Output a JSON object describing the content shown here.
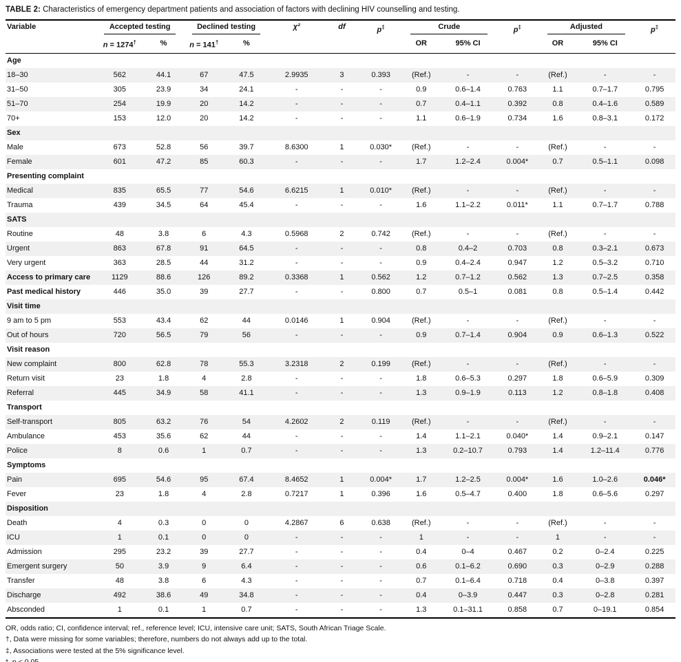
{
  "title": {
    "label": "TABLE 2:",
    "text": "Characteristics of emergency department patients and association of factors with declining HIV counselling and testing."
  },
  "table": {
    "headers": {
      "variable": "Variable",
      "accepted": "Accepted testing",
      "declined": "Declined testing",
      "chi2": "χ²",
      "df": "df",
      "p": {
        "p": "p",
        "sup": "‡"
      },
      "crude": "Crude",
      "adjusted": "Adjusted",
      "n1": {
        "n": "n",
        "rest": " = 1274",
        "sup": "†"
      },
      "n2": {
        "n": "n",
        "rest": " = 141",
        "sup": "†"
      },
      "pct": "%",
      "or": "OR",
      "ci": "95% CI"
    },
    "rows": [
      {
        "type": "section",
        "label": "Age"
      },
      {
        "type": "data",
        "label": "18–30",
        "cells": [
          "562",
          "44.1",
          "67",
          "47.5",
          "2.9935",
          "3",
          "0.393",
          "(Ref.)",
          "-",
          "-",
          "(Ref.)",
          "-",
          "-"
        ]
      },
      {
        "type": "data",
        "label": "31–50",
        "cells": [
          "305",
          "23.9",
          "34",
          "24.1",
          "-",
          "-",
          "-",
          "0.9",
          "0.6–1.4",
          "0.763",
          "1.1",
          "0.7–1.7",
          "0.795"
        ]
      },
      {
        "type": "data",
        "label": "51–70",
        "cells": [
          "254",
          "19.9",
          "20",
          "14.2",
          "-",
          "-",
          "-",
          "0.7",
          "0.4–1.1",
          "0.392",
          "0.8",
          "0.4–1.6",
          "0.589"
        ]
      },
      {
        "type": "data",
        "label": "70+",
        "cells": [
          "153",
          "12.0",
          "20",
          "14.2",
          "-",
          "-",
          "-",
          "1.1",
          "0.6–1.9",
          "0.734",
          "1.6",
          "0.8–3.1",
          "0.172"
        ]
      },
      {
        "type": "section",
        "label": "Sex"
      },
      {
        "type": "data",
        "label": "Male",
        "cells": [
          "673",
          "52.8",
          "56",
          "39.7",
          "8.6300",
          "1",
          "0.030*",
          "(Ref.)",
          "-",
          "-",
          "(Ref.)",
          "-",
          "-"
        ]
      },
      {
        "type": "data",
        "label": "Female",
        "cells": [
          "601",
          "47.2",
          "85",
          "60.3",
          "-",
          "-",
          "-",
          "1.7",
          "1.2–2.4",
          "0.004*",
          "0.7",
          "0.5–1.1",
          "0.098"
        ]
      },
      {
        "type": "section",
        "label": "Presenting complaint"
      },
      {
        "type": "data",
        "label": "Medical",
        "cells": [
          "835",
          "65.5",
          "77",
          "54.6",
          "6.6215",
          "1",
          "0.010*",
          "(Ref.)",
          "-",
          "-",
          "(Ref.)",
          "-",
          "-"
        ]
      },
      {
        "type": "data",
        "label": "Trauma",
        "cells": [
          "439",
          "34.5",
          "64",
          "45.4",
          "-",
          "-",
          "-",
          "1.6",
          "1.1–2.2",
          "0.011*",
          "1.1",
          "0.7–1.7",
          "0.788"
        ]
      },
      {
        "type": "section",
        "label": "SATS"
      },
      {
        "type": "data",
        "label": "Routine",
        "cells": [
          "48",
          "3.8",
          "6",
          "4.3",
          "0.5968",
          "2",
          "0.742",
          "(Ref.)",
          "-",
          "-",
          "(Ref.)",
          "-",
          "-"
        ]
      },
      {
        "type": "data",
        "label": "Urgent",
        "cells": [
          "863",
          "67.8",
          "91",
          "64.5",
          "-",
          "-",
          "-",
          "0.8",
          "0.4–2",
          "0.703",
          "0.8",
          "0.3–2.1",
          "0.673"
        ]
      },
      {
        "type": "data",
        "label": "Very urgent",
        "cells": [
          "363",
          "28.5",
          "44",
          "31.2",
          "-",
          "-",
          "-",
          "0.9",
          "0.4–2.4",
          "0.947",
          "1.2",
          "0.5–3.2",
          "0.710"
        ]
      },
      {
        "type": "bold",
        "label": "Access to primary care",
        "cells": [
          "1129",
          "88.6",
          "126",
          "89.2",
          "0.3368",
          "1",
          "0.562",
          "1.2",
          "0.7–1.2",
          "0.562",
          "1.3",
          "0.7–2.5",
          "0.358"
        ]
      },
      {
        "type": "bold",
        "label": "Past medical history",
        "cells": [
          "446",
          "35.0",
          "39",
          "27.7",
          "-",
          "-",
          "0.800",
          "0.7",
          "0.5–1",
          "0.081",
          "0.8",
          "0.5–1.4",
          "0.442"
        ]
      },
      {
        "type": "section",
        "label": "Visit time"
      },
      {
        "type": "data",
        "label": "9 am to 5 pm",
        "cells": [
          "553",
          "43.4",
          "62",
          "44",
          "0.0146",
          "1",
          "0.904",
          "(Ref.)",
          "-",
          "-",
          "(Ref.)",
          "-",
          "-"
        ]
      },
      {
        "type": "data",
        "label": "Out of hours",
        "cells": [
          "720",
          "56.5",
          "79",
          "56",
          "-",
          "-",
          "-",
          "0.9",
          "0.7–1.4",
          "0.904",
          "0.9",
          "0.6–1.3",
          "0.522"
        ]
      },
      {
        "type": "section",
        "label": "Visit reason"
      },
      {
        "type": "data",
        "label": "New complaint",
        "cells": [
          "800",
          "62.8",
          "78",
          "55.3",
          "3.2318",
          "2",
          "0.199",
          "(Ref.)",
          "-",
          "-",
          "(Ref.)",
          "-",
          "-"
        ]
      },
      {
        "type": "data",
        "label": "Return visit",
        "cells": [
          "23",
          "1.8",
          "4",
          "2.8",
          "-",
          "-",
          "-",
          "1.8",
          "0.6–5.3",
          "0.297",
          "1.8",
          "0.6–5.9",
          "0.309"
        ]
      },
      {
        "type": "data",
        "label": "Referral",
        "cells": [
          "445",
          "34.9",
          "58",
          "41.1",
          "-",
          "-",
          "-",
          "1.3",
          "0.9–1.9",
          "0.113",
          "1.2",
          "0.8–1.8",
          "0.408"
        ]
      },
      {
        "type": "section",
        "label": "Transport"
      },
      {
        "type": "data",
        "label": "Self-transport",
        "cells": [
          "805",
          "63.2",
          "76",
          "54",
          "4.2602",
          "2",
          "0.119",
          "(Ref.)",
          "-",
          "-",
          "(Ref.)",
          "-",
          "-"
        ]
      },
      {
        "type": "data",
        "label": "Ambulance",
        "cells": [
          "453",
          "35.6",
          "62",
          "44",
          "-",
          "-",
          "-",
          "1.4",
          "1.1–2.1",
          "0.040*",
          "1.4",
          "0.9–2.1",
          "0.147"
        ]
      },
      {
        "type": "data",
        "label": "Police",
        "cells": [
          "8",
          "0.6",
          "1",
          "0.7",
          "-",
          "-",
          "-",
          "1.3",
          "0.2–10.7",
          "0.793",
          "1.4",
          "1.2–11.4",
          "0.776"
        ]
      },
      {
        "type": "section",
        "label": "Symptoms"
      },
      {
        "type": "data",
        "label": "Pain",
        "cells": [
          "695",
          "54.6",
          "95",
          "67.4",
          "8.4652",
          "1",
          "0.004*",
          "1.7",
          "1.2–2.5",
          "0.004*",
          "1.6",
          "1.0–2.6",
          "0.046*"
        ],
        "bold_cells": [
          12
        ]
      },
      {
        "type": "data",
        "label": "Fever",
        "cells": [
          "23",
          "1.8",
          "4",
          "2.8",
          "0.7217",
          "1",
          "0.396",
          "1.6",
          "0.5–4.7",
          "0.400",
          "1.8",
          "0.6–5.6",
          "0.297"
        ]
      },
      {
        "type": "section",
        "label": "Disposition"
      },
      {
        "type": "data",
        "label": "Death",
        "cells": [
          "4",
          "0.3",
          "0",
          "0",
          "4.2867",
          "6",
          "0.638",
          "(Ref.)",
          "-",
          "-",
          "(Ref.)",
          "-",
          "-"
        ]
      },
      {
        "type": "data",
        "label": "ICU",
        "cells": [
          "1",
          "0.1",
          "0",
          "0",
          "-",
          "-",
          "-",
          "1",
          "-",
          "-",
          "1",
          "-",
          "-"
        ]
      },
      {
        "type": "data",
        "label": "Admission",
        "cells": [
          "295",
          "23.2",
          "39",
          "27.7",
          "-",
          "-",
          "-",
          "0.4",
          "0–4",
          "0.467",
          "0.2",
          "0–2.4",
          "0.225"
        ]
      },
      {
        "type": "data",
        "label": "Emergent surgery",
        "cells": [
          "50",
          "3.9",
          "9",
          "6.4",
          "-",
          "-",
          "-",
          "0.6",
          "0.1–6.2",
          "0.690",
          "0.3",
          "0–2.9",
          "0.288"
        ]
      },
      {
        "type": "data",
        "label": "Transfer",
        "cells": [
          "48",
          "3.8",
          "6",
          "4.3",
          "-",
          "-",
          "-",
          "0.7",
          "0.1–6.4",
          "0.718",
          "0.4",
          "0–3.8",
          "0.397"
        ]
      },
      {
        "type": "data",
        "label": "Discharge",
        "cells": [
          "492",
          "38.6",
          "49",
          "34.8",
          "-",
          "-",
          "-",
          "0.4",
          "0–3.9",
          "0.447",
          "0.3",
          "0–2.8",
          "0.281"
        ]
      },
      {
        "type": "data",
        "label": "Absconded",
        "cells": [
          "1",
          "0.1",
          "1",
          "0.7",
          "-",
          "-",
          "-",
          "1.3",
          "0.1–31.1",
          "0.858",
          "0.7",
          "0–19.1",
          "0.854"
        ]
      }
    ]
  },
  "footnotes": [
    "OR, odds ratio; CI, confidence interval; ref., reference level; ICU, intensive care unit; SATS, South African Triage Scale.",
    "†, Data were missing for some variables; therefore, numbers do not always add up to the total.",
    "‡, Associations were tested at the 5% significance level.",
    "*, p < 0.05.,"
  ]
}
